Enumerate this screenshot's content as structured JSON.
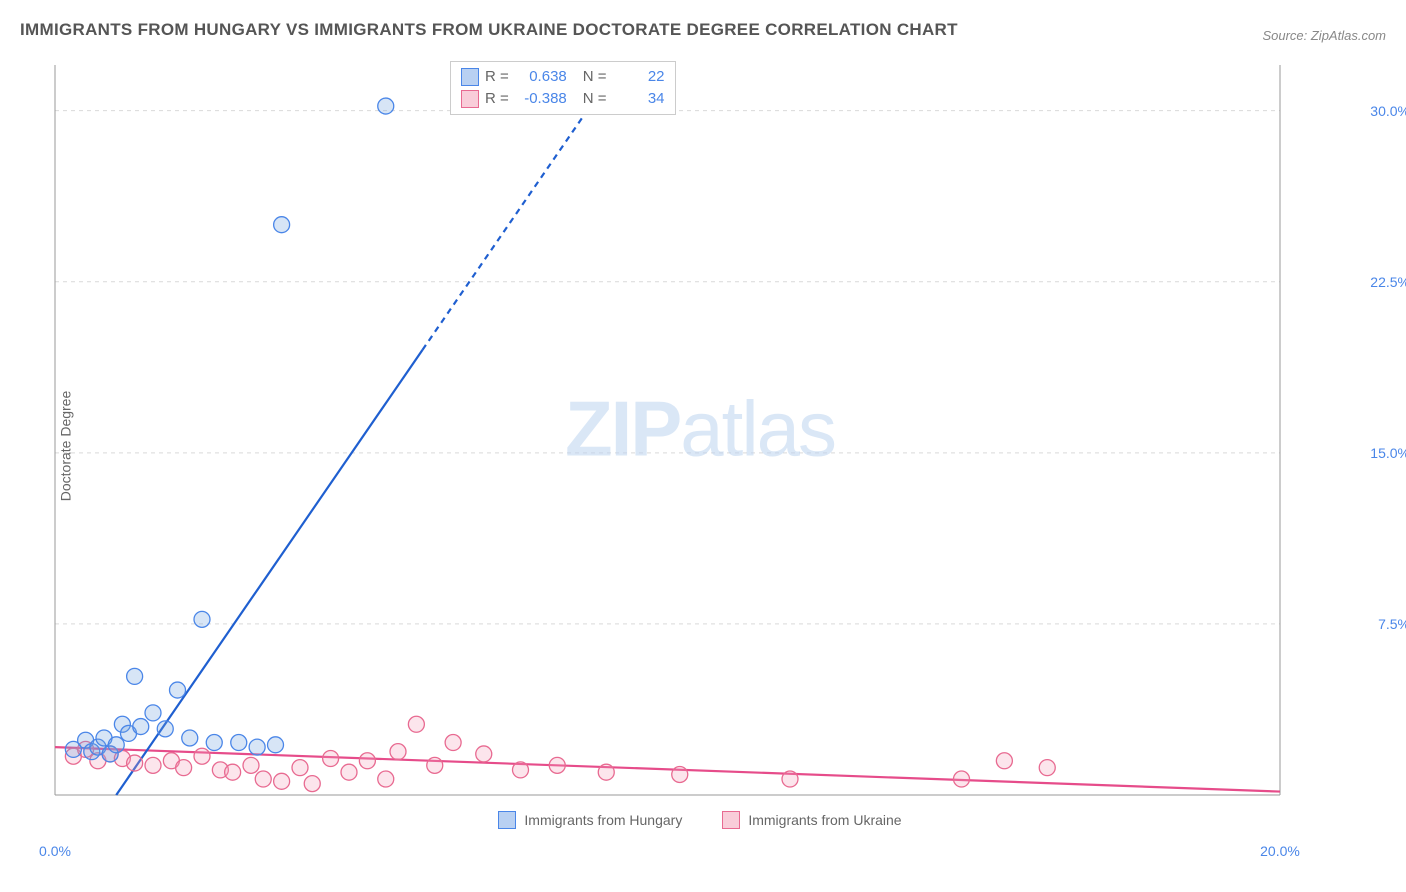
{
  "title": "IMMIGRANTS FROM HUNGARY VS IMMIGRANTS FROM UKRAINE DOCTORATE DEGREE CORRELATION CHART",
  "source": "Source: ZipAtlas.com",
  "ylabel": "Doctorate Degree",
  "watermark_zip": "ZIP",
  "watermark_atlas": "atlas",
  "chart": {
    "type": "scatter",
    "plot_bg": "#ffffff",
    "grid_color": "#d9d9d9",
    "grid_dash": "4,4",
    "axis_color": "#999999",
    "tick_color": "#4a86e8",
    "xlim": [
      0,
      20
    ],
    "ylim": [
      0,
      32
    ],
    "yticks": [
      7.5,
      15.0,
      22.5,
      30.0
    ],
    "ytick_labels": [
      "7.5%",
      "15.0%",
      "22.5%",
      "30.0%"
    ],
    "xticks": [
      0,
      20
    ],
    "xtick_labels": [
      "0.0%",
      "20.0%"
    ],
    "marker_radius": 8,
    "marker_stroke_width": 1.3,
    "marker_fill_opacity": 0.28,
    "line_width": 2.2
  },
  "series": {
    "hungary": {
      "label": "Immigrants from Hungary",
      "color": "#6fa1e0",
      "stroke": "#4a86e8",
      "line_color": "#1f5fd0",
      "line_solid_to_x": 6.0,
      "line_dash": "6,5",
      "trend": {
        "x1": 1.0,
        "y1": 0.0,
        "x2": 9.2,
        "y2": 32.0
      },
      "R": "0.638",
      "N": "22",
      "points": [
        [
          0.3,
          2.0
        ],
        [
          0.5,
          2.4
        ],
        [
          0.6,
          1.9
        ],
        [
          0.7,
          2.1
        ],
        [
          0.8,
          2.5
        ],
        [
          0.9,
          1.8
        ],
        [
          1.0,
          2.2
        ],
        [
          1.1,
          3.1
        ],
        [
          1.2,
          2.7
        ],
        [
          1.3,
          5.2
        ],
        [
          1.4,
          3.0
        ],
        [
          1.6,
          3.6
        ],
        [
          1.8,
          2.9
        ],
        [
          2.0,
          4.6
        ],
        [
          2.2,
          2.5
        ],
        [
          2.4,
          7.7
        ],
        [
          2.6,
          2.3
        ],
        [
          3.0,
          2.3
        ],
        [
          3.3,
          2.1
        ],
        [
          3.6,
          2.2
        ],
        [
          3.7,
          25.0
        ],
        [
          5.4,
          30.2
        ]
      ]
    },
    "ukraine": {
      "label": "Immigrants from Ukraine",
      "color": "#f5a3bb",
      "stroke": "#e86a91",
      "line_color": "#e64c8a",
      "trend": {
        "x1": 0.0,
        "y1": 2.1,
        "x2": 20.0,
        "y2": 0.15
      },
      "R": "-0.388",
      "N": "34",
      "points": [
        [
          0.3,
          1.7
        ],
        [
          0.5,
          2.0
        ],
        [
          0.7,
          1.5
        ],
        [
          0.9,
          1.8
        ],
        [
          1.1,
          1.6
        ],
        [
          1.3,
          1.4
        ],
        [
          1.6,
          1.3
        ],
        [
          1.9,
          1.5
        ],
        [
          2.1,
          1.2
        ],
        [
          2.4,
          1.7
        ],
        [
          2.7,
          1.1
        ],
        [
          2.9,
          1.0
        ],
        [
          3.2,
          1.3
        ],
        [
          3.4,
          0.7
        ],
        [
          3.7,
          0.6
        ],
        [
          4.0,
          1.2
        ],
        [
          4.2,
          0.5
        ],
        [
          4.5,
          1.6
        ],
        [
          4.8,
          1.0
        ],
        [
          5.1,
          1.5
        ],
        [
          5.4,
          0.7
        ],
        [
          5.6,
          1.9
        ],
        [
          5.9,
          3.1
        ],
        [
          6.2,
          1.3
        ],
        [
          6.5,
          2.3
        ],
        [
          7.0,
          1.8
        ],
        [
          7.6,
          1.1
        ],
        [
          8.2,
          1.3
        ],
        [
          9.0,
          1.0
        ],
        [
          10.2,
          0.9
        ],
        [
          12.0,
          0.7
        ],
        [
          14.8,
          0.7
        ],
        [
          15.5,
          1.5
        ],
        [
          16.2,
          1.2
        ]
      ]
    }
  },
  "bottom_legend": [
    {
      "label": "Immigrants from Hungary",
      "fill": "#b8d0f2",
      "stroke": "#4a86e8"
    },
    {
      "label": "Immigrants from Ukraine",
      "fill": "#f9cdd9",
      "stroke": "#e86a91"
    }
  ],
  "stats_box": {
    "R_label": "R  =",
    "N_label": "N  ="
  }
}
